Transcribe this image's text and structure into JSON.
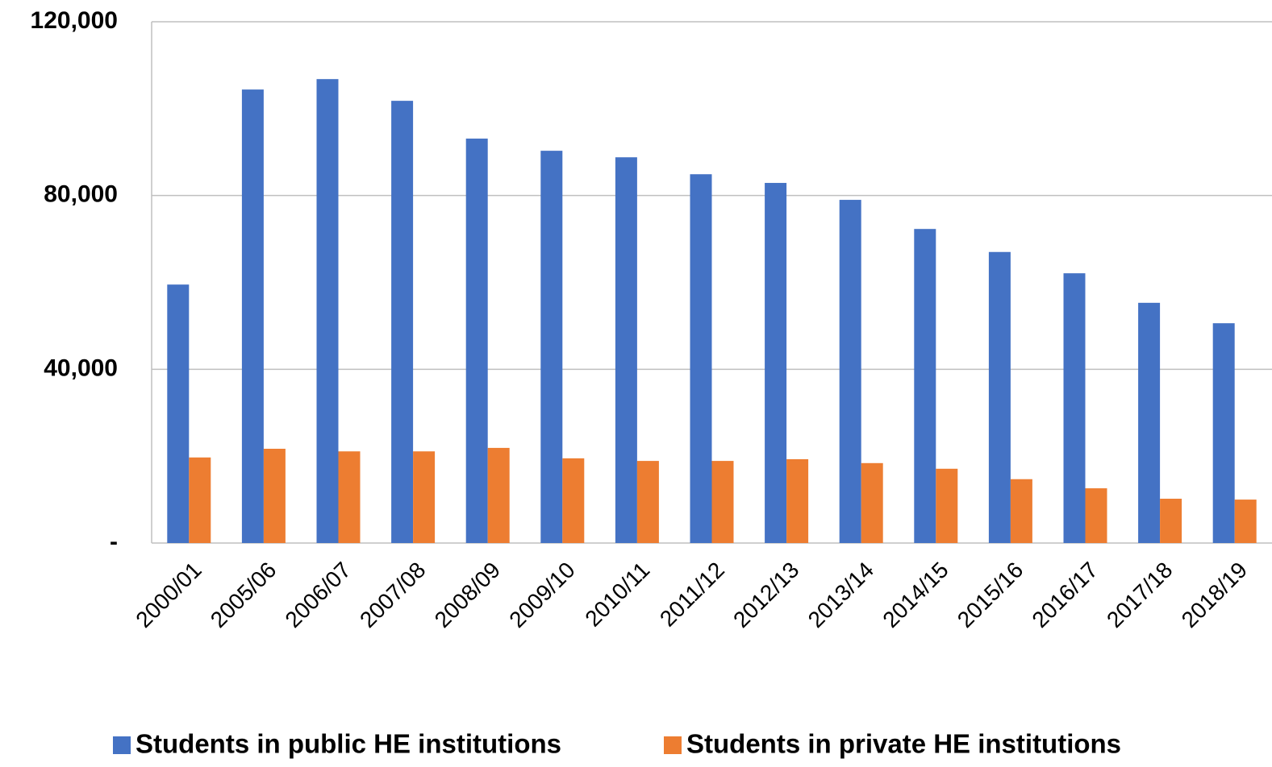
{
  "chart_data": {
    "type": "bar",
    "categories": [
      "2000/01",
      "2005/06",
      "2006/07",
      "2007/08",
      "2008/09",
      "2009/10",
      "2010/11",
      "2011/12",
      "2012/13",
      "2013/14",
      "2014/15",
      "2015/16",
      "2016/17",
      "2017/18",
      "2018/19"
    ],
    "series": [
      {
        "name": "Students in public HE institutions",
        "color": "#4472c4",
        "values": [
          59500,
          104400,
          106800,
          101800,
          93100,
          90300,
          88800,
          84900,
          82900,
          79000,
          72300,
          67000,
          62100,
          55300,
          50600
        ]
      },
      {
        "name": "Students in private HE institutions",
        "color": "#ed7d31",
        "values": [
          19700,
          21700,
          21100,
          21100,
          21900,
          19500,
          18900,
          18900,
          19300,
          18400,
          17100,
          14700,
          12600,
          10200,
          10000
        ]
      }
    ],
    "ylim": [
      0,
      120000
    ],
    "yticks": [
      {
        "value": 0,
        "label": "-"
      },
      {
        "value": 40000,
        "label": "40,000"
      },
      {
        "value": 80000,
        "label": "80,000"
      },
      {
        "value": 120000,
        "label": "120,000"
      }
    ],
    "grid": true
  }
}
